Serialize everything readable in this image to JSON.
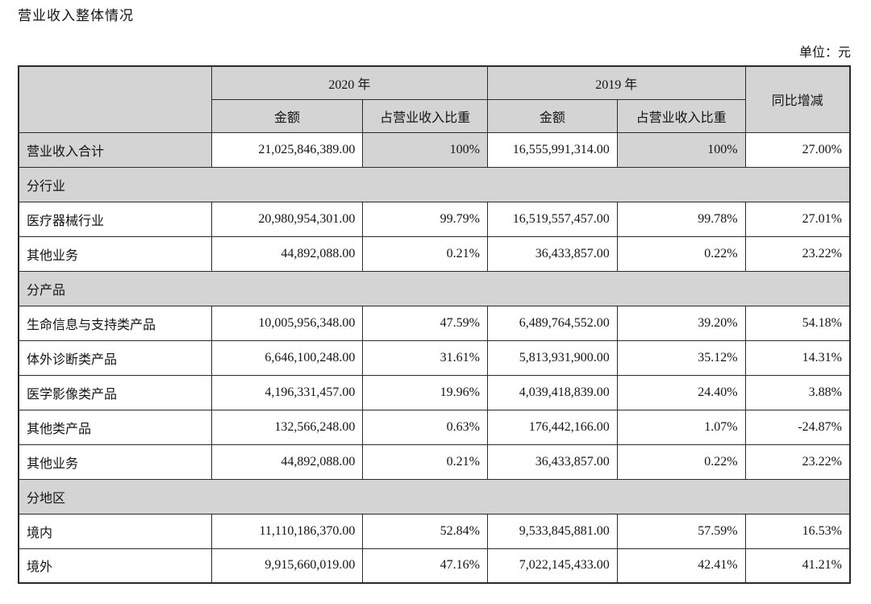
{
  "page": {
    "title": "营业收入整体情况",
    "unit_label": "单位：元"
  },
  "colors": {
    "shade_bg": "#d4d4d4",
    "border": "#2b2b2b"
  },
  "table": {
    "header": {
      "year_2020": "2020 年",
      "year_2019": "2019 年",
      "yoy_label": "同比增减",
      "amount_label": "金额",
      "share_label": "占营业收入比重"
    },
    "rows": [
      {
        "type": "data",
        "highlight": true,
        "label": "营业收入合计",
        "a2020": "21,025,846,389.00",
        "p2020": "100%",
        "a2019": "16,555,991,314.00",
        "p2019": "100%",
        "yoy": "27.00%"
      },
      {
        "type": "section",
        "label": "分行业"
      },
      {
        "type": "data",
        "label": "医疗器械行业",
        "a2020": "20,980,954,301.00",
        "p2020": "99.79%",
        "a2019": "16,519,557,457.00",
        "p2019": "99.78%",
        "yoy": "27.01%"
      },
      {
        "type": "data",
        "label": "其他业务",
        "a2020": "44,892,088.00",
        "p2020": "0.21%",
        "a2019": "36,433,857.00",
        "p2019": "0.22%",
        "yoy": "23.22%"
      },
      {
        "type": "section",
        "label": "分产品"
      },
      {
        "type": "data",
        "label": "生命信息与支持类产品",
        "a2020": "10,005,956,348.00",
        "p2020": "47.59%",
        "a2019": "6,489,764,552.00",
        "p2019": "39.20%",
        "yoy": "54.18%"
      },
      {
        "type": "data",
        "label": "体外诊断类产品",
        "a2020": "6,646,100,248.00",
        "p2020": "31.61%",
        "a2019": "5,813,931,900.00",
        "p2019": "35.12%",
        "yoy": "14.31%"
      },
      {
        "type": "data",
        "label": "医学影像类产品",
        "a2020": "4,196,331,457.00",
        "p2020": "19.96%",
        "a2019": "4,039,418,839.00",
        "p2019": "24.40%",
        "yoy": "3.88%"
      },
      {
        "type": "data",
        "label": "其他类产品",
        "a2020": "132,566,248.00",
        "p2020": "0.63%",
        "a2019": "176,442,166.00",
        "p2019": "1.07%",
        "yoy": "-24.87%"
      },
      {
        "type": "data",
        "label": "其他业务",
        "a2020": "44,892,088.00",
        "p2020": "0.21%",
        "a2019": "36,433,857.00",
        "p2019": "0.22%",
        "yoy": "23.22%"
      },
      {
        "type": "section",
        "label": "分地区"
      },
      {
        "type": "data",
        "label": "境内",
        "a2020": "11,110,186,370.00",
        "p2020": "52.84%",
        "a2019": "9,533,845,881.00",
        "p2019": "57.59%",
        "yoy": "16.53%"
      },
      {
        "type": "data",
        "label": "境外",
        "a2020": "9,915,660,019.00",
        "p2020": "47.16%",
        "a2019": "7,022,145,433.00",
        "p2019": "42.41%",
        "yoy": "41.21%"
      }
    ]
  }
}
